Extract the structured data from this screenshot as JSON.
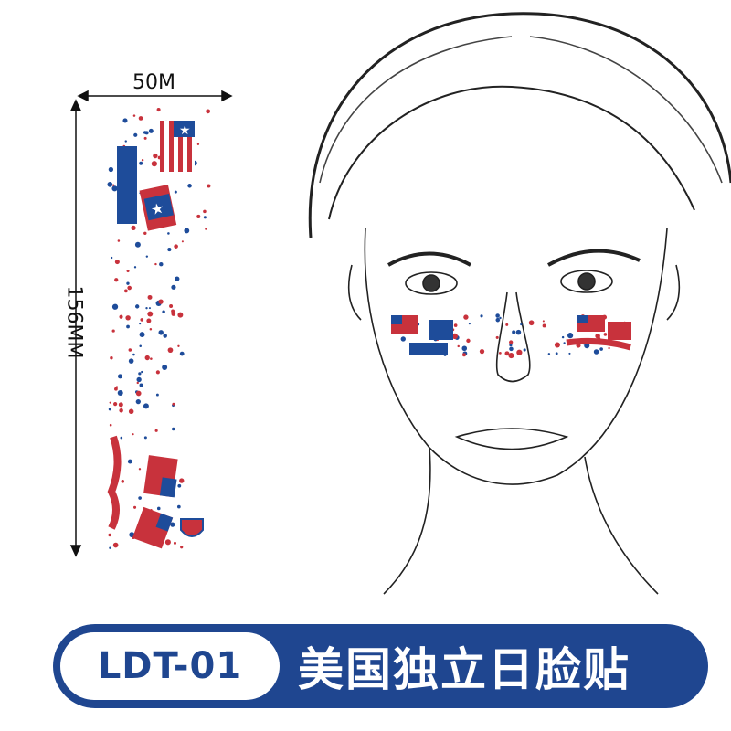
{
  "dimensions": {
    "width_label": "50M",
    "height_label": "156MM"
  },
  "banner": {
    "code": "LDT-01",
    "title": "美国独立日脸贴"
  },
  "colors": {
    "banner_blue": "#1f4690",
    "flag_red": "#c8323c",
    "flag_blue": "#1e4c9a",
    "ink": "#222222"
  },
  "illustration": {
    "subject": "face-sketch",
    "sticker": "stars-and-flags"
  }
}
